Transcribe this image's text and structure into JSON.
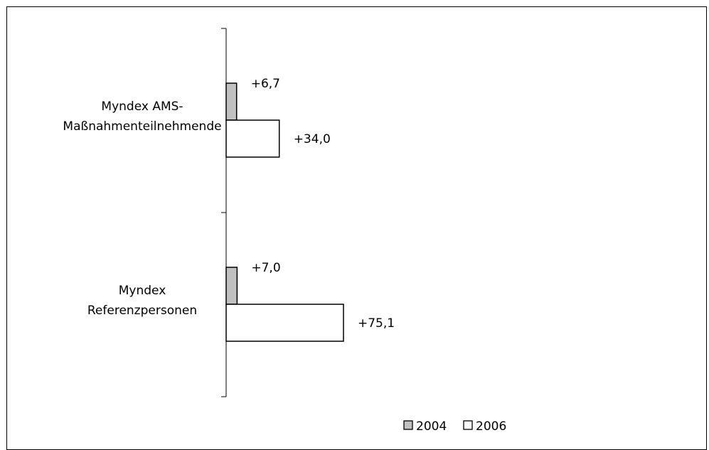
{
  "chart_data": {
    "type": "bar",
    "orientation": "horizontal",
    "categories": [
      [
        "Myndex AMS-",
        "Maßnahmenteilnehmende"
      ],
      [
        "Myndex",
        "Referenzpersonen"
      ]
    ],
    "series": [
      {
        "name": "2004",
        "values": [
          6.7,
          7.0
        ],
        "labels": [
          "+6,7",
          "+7,0"
        ],
        "color": "#c0c0c0"
      },
      {
        "name": "2006",
        "values": [
          34.0,
          75.1
        ],
        "labels": [
          "+34,0",
          "+75,1"
        ],
        "color": "#ffffff"
      }
    ],
    "title": "",
    "xlabel": "",
    "ylabel": "",
    "xlim": [
      0,
      100
    ],
    "grid": false,
    "legend": "bottom-center"
  }
}
